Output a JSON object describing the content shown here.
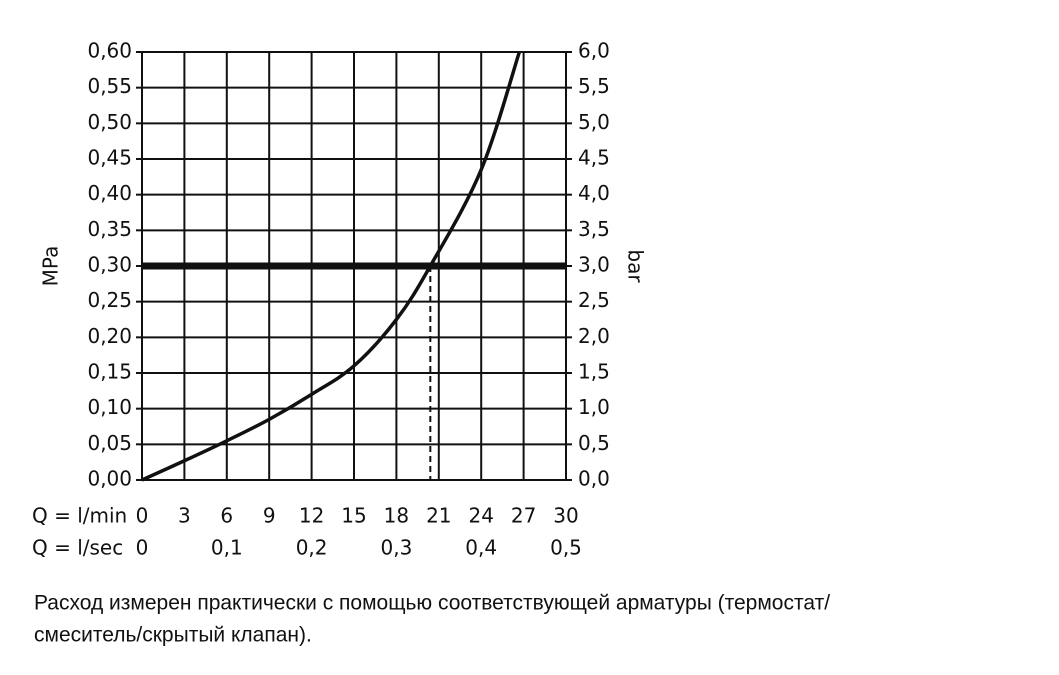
{
  "chart_data": {
    "type": "line",
    "y_label": "MPa",
    "y2_label": "bar",
    "x_row_label": "Q = l/min",
    "x2_row_label": "Q = l/sec",
    "xlim": [
      0,
      30
    ],
    "xticks": [
      0,
      3,
      6,
      9,
      12,
      15,
      18,
      21,
      24,
      27,
      30
    ],
    "x2lim": [
      0,
      0.5
    ],
    "x2ticks": [
      0,
      {
        "value": 0.1,
        "label": "0,1"
      },
      {
        "value": 0.2,
        "label": "0,2"
      },
      {
        "value": 0.3,
        "label": "0,3"
      },
      {
        "value": 0.4,
        "label": "0,4"
      },
      {
        "value": 0.5,
        "label": "0,5"
      }
    ],
    "ylim": [
      0,
      0.6
    ],
    "yticks": [
      {
        "value": 0,
        "label": "0,00"
      },
      {
        "value": 0.05,
        "label": "0,05"
      },
      {
        "value": 0.1,
        "label": "0,10"
      },
      {
        "value": 0.15,
        "label": "0,15"
      },
      {
        "value": 0.2,
        "label": "0,20"
      },
      {
        "value": 0.25,
        "label": "0,25"
      },
      {
        "value": 0.3,
        "label": "0,30"
      },
      {
        "value": 0.35,
        "label": "0,35"
      },
      {
        "value": 0.4,
        "label": "0,40"
      },
      {
        "value": 0.45,
        "label": "0,45"
      },
      {
        "value": 0.5,
        "label": "0,50"
      },
      {
        "value": 0.55,
        "label": "0,55"
      },
      {
        "value": 0.6,
        "label": "0,60"
      }
    ],
    "y2lim": [
      0,
      6
    ],
    "y2ticks": [
      {
        "value": 0,
        "label": "0,0"
      },
      {
        "value": 0.5,
        "label": "0,5"
      },
      {
        "value": 1,
        "label": "1,0"
      },
      {
        "value": 1.5,
        "label": "1,5"
      },
      {
        "value": 2,
        "label": "2,0"
      },
      {
        "value": 2.5,
        "label": "2,5"
      },
      {
        "value": 3,
        "label": "3,0"
      },
      {
        "value": 3.5,
        "label": "3,5"
      },
      {
        "value": 4,
        "label": "4,0"
      },
      {
        "value": 4.5,
        "label": "4,5"
      },
      {
        "value": 5,
        "label": "5,0"
      },
      {
        "value": 5.5,
        "label": "5,5"
      },
      {
        "value": 6,
        "label": "6,0"
      }
    ],
    "grid": true,
    "series": [
      {
        "color": "#111111",
        "x": [
          0,
          3,
          6,
          9,
          12,
          15,
          18,
          20.4,
          24,
          26.7
        ],
        "values": [
          0,
          0.027,
          0.055,
          0.085,
          0.12,
          0.16,
          0.225,
          0.3,
          0.435,
          0.6
        ]
      }
    ],
    "reference_line": 0.3,
    "marker_x": 20.4,
    "caption": [
      "Расход измерен практически с помощью соответствующей арматуры (термостат/",
      "смеситель/скрытый клапан)."
    ]
  }
}
